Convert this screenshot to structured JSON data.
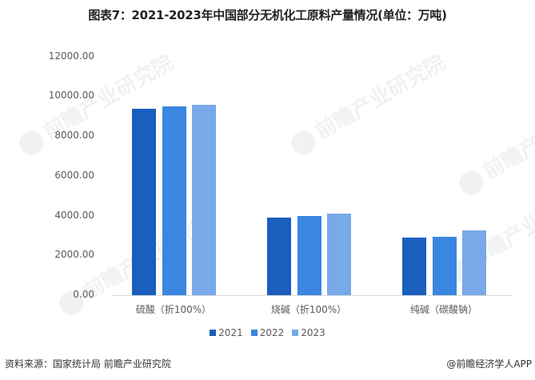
{
  "title": "图表7：2021-2023年中国部分无机化工原料产量情况(单位：万吨)",
  "watermark": "前瞻产业研究院",
  "footer": {
    "source": "资料来源：国家统计局 前瞻产业研究院",
    "credit": "@前瞻经济学人APP"
  },
  "colors": {
    "2021": "#1a5fbe",
    "2022": "#3a86e0",
    "2023": "#78a9e8"
  },
  "chart_data": {
    "type": "bar",
    "title": "图表7：2021-2023年中国部分无机化工原料产量情况(单位：万吨)",
    "xlabel": "",
    "ylabel": "",
    "ylim": [
      0,
      12000
    ],
    "yticks": [
      "0.00",
      "2000.00",
      "4000.00",
      "6000.00",
      "8000.00",
      "10000.00",
      "12000.00"
    ],
    "grid": false,
    "legend_position": "bottom",
    "categories": [
      "硫酸（折100%）",
      "烧碱（折100%）",
      "纯碱（碳酸钠）"
    ],
    "series": [
      {
        "name": "2021",
        "values": [
          9380,
          3900,
          2900
        ]
      },
      {
        "name": "2022",
        "values": [
          9500,
          3980,
          2940
        ]
      },
      {
        "name": "2023",
        "values": [
          9580,
          4100,
          3260
        ]
      }
    ]
  }
}
